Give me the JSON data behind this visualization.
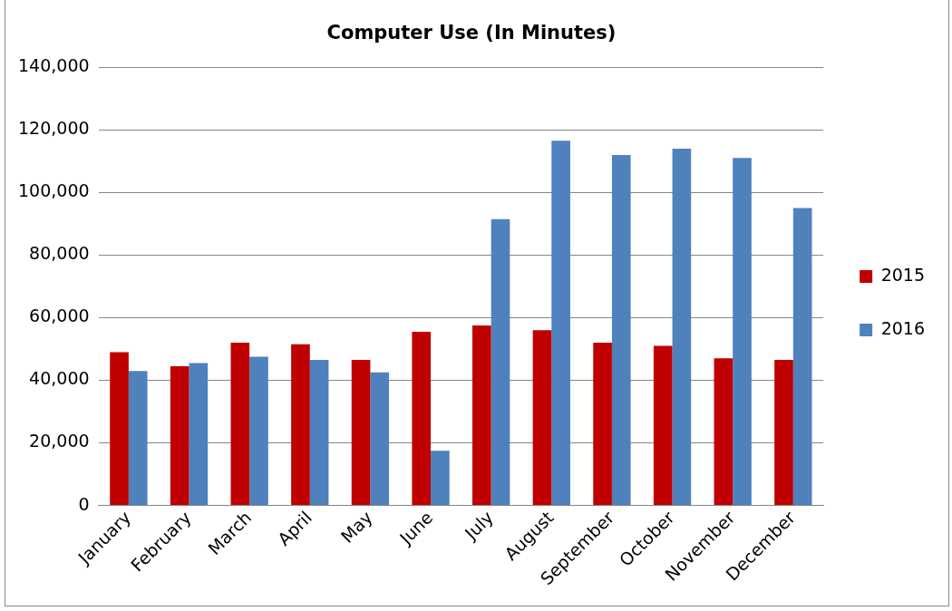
{
  "chart_data": {
    "type": "bar",
    "title": "Computer Use (In Minutes)",
    "categories": [
      "January",
      "February",
      "March",
      "April",
      "May",
      "June",
      "July",
      "August",
      "September",
      "October",
      "November",
      "December"
    ],
    "series": [
      {
        "name": "2015",
        "color": "#c00000",
        "values": [
          49000,
          44500,
          52000,
          51500,
          46500,
          55500,
          57500,
          56000,
          52000,
          51000,
          47000,
          46500
        ]
      },
      {
        "name": "2016",
        "color": "#4f81bd",
        "values": [
          43000,
          45500,
          47500,
          46500,
          42500,
          17500,
          91500,
          116500,
          112000,
          114000,
          111000,
          95000
        ]
      }
    ],
    "ylim": [
      0,
      140000
    ],
    "yticks": [
      0,
      {
        "value": 20000,
        "label": "20,000"
      },
      {
        "value": 40000,
        "label": "40,000"
      },
      {
        "value": 60000,
        "label": "60,000"
      },
      {
        "value": 80000,
        "label": "80,000"
      },
      {
        "value": 100000,
        "label": "100,000"
      },
      {
        "value": 120000,
        "label": "120,000"
      },
      {
        "value": 140000,
        "label": "140,000"
      }
    ],
    "grid": "y",
    "legend": "right"
  }
}
